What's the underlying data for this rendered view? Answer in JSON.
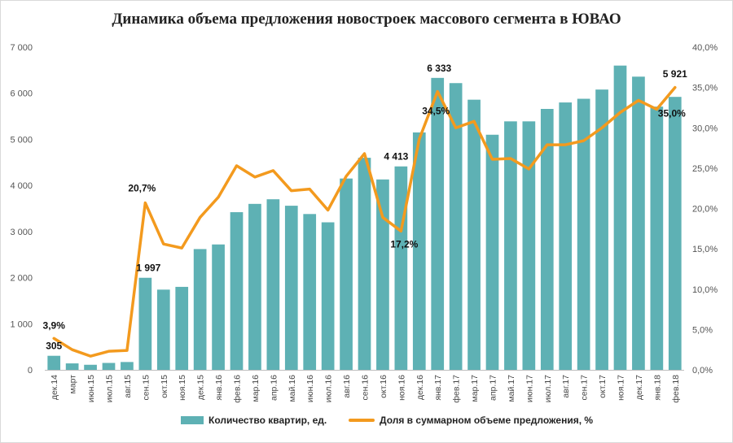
{
  "chart_data": {
    "type": "bar",
    "title": "Динамика объема предложения новостроек массового сегмента в ЮВАО",
    "categories": [
      "дек.14",
      "март",
      "июн.15",
      "июл.15",
      "авг.15",
      "сен.15",
      "окт.15",
      "ноя.15",
      "дек.15",
      "янв.16",
      "фев.16",
      "мар.16",
      "апр.16",
      "май.16",
      "июн.16",
      "июл.16",
      "авг.16",
      "сен.16",
      "окт.16",
      "ноя.16",
      "дек.16",
      "янв.17",
      "фев.17",
      "мар.17",
      "апр.17",
      "май.17",
      "июн.17",
      "июл.17",
      "авг.17",
      "сен.17",
      "окт.17",
      "ноя.17",
      "дек.17",
      "янв.18",
      "фев.18"
    ],
    "y_left": {
      "min": 0,
      "max": 7000,
      "ticks": [
        "0",
        "1 000",
        "2 000",
        "3 000",
        "4 000",
        "5 000",
        "6 000",
        "7 000"
      ]
    },
    "y_right": {
      "min": 0,
      "max": 40,
      "ticks": [
        "0,0%",
        "5,0%",
        "10,0%",
        "15,0%",
        "20,0%",
        "25,0%",
        "30,0%",
        "35,0%",
        "40,0%"
      ]
    },
    "series": [
      {
        "name": "Количество квартир, ед.",
        "type": "bar",
        "axis": "left",
        "color": "#5eb1b4",
        "values": [
          305,
          140,
          110,
          150,
          170,
          1997,
          1740,
          1800,
          2620,
          2720,
          3420,
          3600,
          3700,
          3560,
          3380,
          3200,
          4150,
          4600,
          4130,
          4413,
          5150,
          6333,
          6220,
          5860,
          5100,
          5390,
          5390,
          5660,
          5800,
          5880,
          6080,
          6600,
          6360,
          5710,
          5921
        ]
      },
      {
        "name": "Доля в суммарном объеме предложения, %",
        "type": "line",
        "axis": "right",
        "color": "#f39a1e",
        "values": [
          3.9,
          2.5,
          1.7,
          2.3,
          2.4,
          20.7,
          15.6,
          15.1,
          18.9,
          21.4,
          25.3,
          23.9,
          24.7,
          22.2,
          22.4,
          19.8,
          24.0,
          26.8,
          18.9,
          17.2,
          28.6,
          34.5,
          30.0,
          30.8,
          26.1,
          26.2,
          24.9,
          27.9,
          27.9,
          28.4,
          30.0,
          31.9,
          33.4,
          32.3,
          35.0
        ]
      }
    ],
    "data_labels": [
      {
        "series": 0,
        "index": 0,
        "text": "305"
      },
      {
        "series": 0,
        "index": 5,
        "text": "1 997"
      },
      {
        "series": 0,
        "index": 19,
        "text": "4 413"
      },
      {
        "series": 0,
        "index": 21,
        "text": "6 333"
      },
      {
        "series": 0,
        "index": 34,
        "text": "5 921"
      },
      {
        "series": 1,
        "index": 0,
        "text": "3,9%"
      },
      {
        "series": 1,
        "index": 5,
        "text": "20,7%"
      },
      {
        "series": 1,
        "index": 19,
        "text": "17,2%"
      },
      {
        "series": 1,
        "index": 21,
        "text": "34,5%"
      },
      {
        "series": 1,
        "index": 34,
        "text": "35,0%"
      }
    ],
    "legend_position": "bottom",
    "grid": false
  }
}
